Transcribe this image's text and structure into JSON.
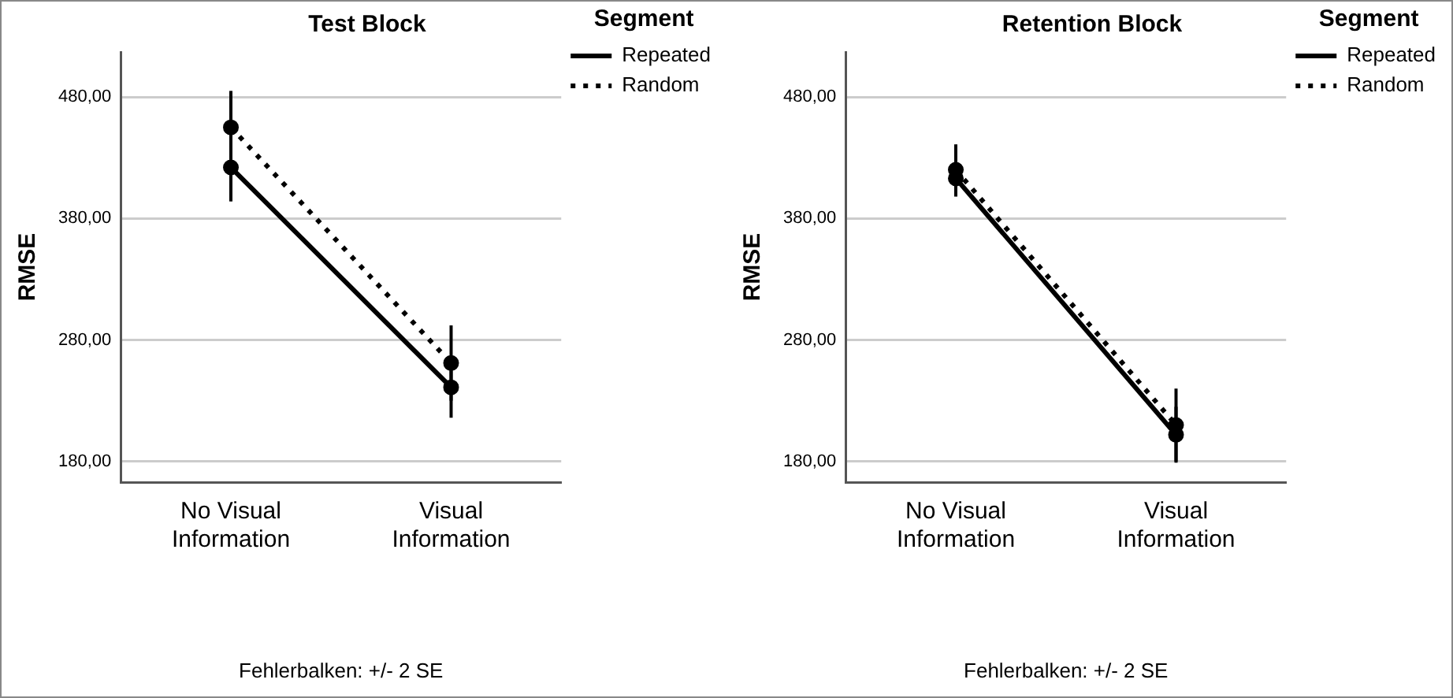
{
  "chart_data": [
    {
      "type": "line",
      "title": "Test Block",
      "ylabel": "RMSE",
      "legend_title": "Segment",
      "legend": "right",
      "grid": "y",
      "marker": "circle",
      "categories": [
        "No Visual Information",
        "Visual Information"
      ],
      "series": [
        {
          "name": "Repeated",
          "color": "#000000",
          "line_style": "solid",
          "values": [
            422,
            241
          ],
          "errors": [
            28,
            25
          ]
        },
        {
          "name": "Random",
          "color": "#000000",
          "line_style": "dotted",
          "values": [
            455,
            261
          ],
          "errors": [
            30,
            31
          ]
        }
      ],
      "ylim": [
        163,
        517
      ],
      "yticks": [
        {
          "value": 180,
          "label": "180,00"
        },
        {
          "value": 280,
          "label": "280,00"
        },
        {
          "value": 380,
          "label": "380,00"
        },
        {
          "value": 480,
          "label": "480,00"
        }
      ],
      "annotations": [
        "Fehlerbalken: +/- 2 SE"
      ]
    },
    {
      "type": "line",
      "title": "Retention Block",
      "ylabel": "RMSE",
      "legend_title": "Segment",
      "legend": "right",
      "grid": "y",
      "marker": "circle",
      "categories": [
        "No Visual Information",
        "Visual Information"
      ],
      "series": [
        {
          "name": "Repeated",
          "color": "#000000",
          "line_style": "solid",
          "values": [
            413,
            202
          ],
          "errors": [
            15,
            23
          ]
        },
        {
          "name": "Random",
          "color": "#000000",
          "line_style": "dotted",
          "values": [
            420,
            210
          ],
          "errors": [
            21,
            30
          ]
        }
      ],
      "ylim": [
        163,
        517
      ],
      "yticks": [
        {
          "value": 180,
          "label": "180,00"
        },
        {
          "value": 280,
          "label": "280,00"
        },
        {
          "value": 380,
          "label": "380,00"
        },
        {
          "value": 480,
          "label": "480,00"
        }
      ],
      "annotations": [
        "Fehlerbalken: +/- 2 SE"
      ]
    }
  ]
}
